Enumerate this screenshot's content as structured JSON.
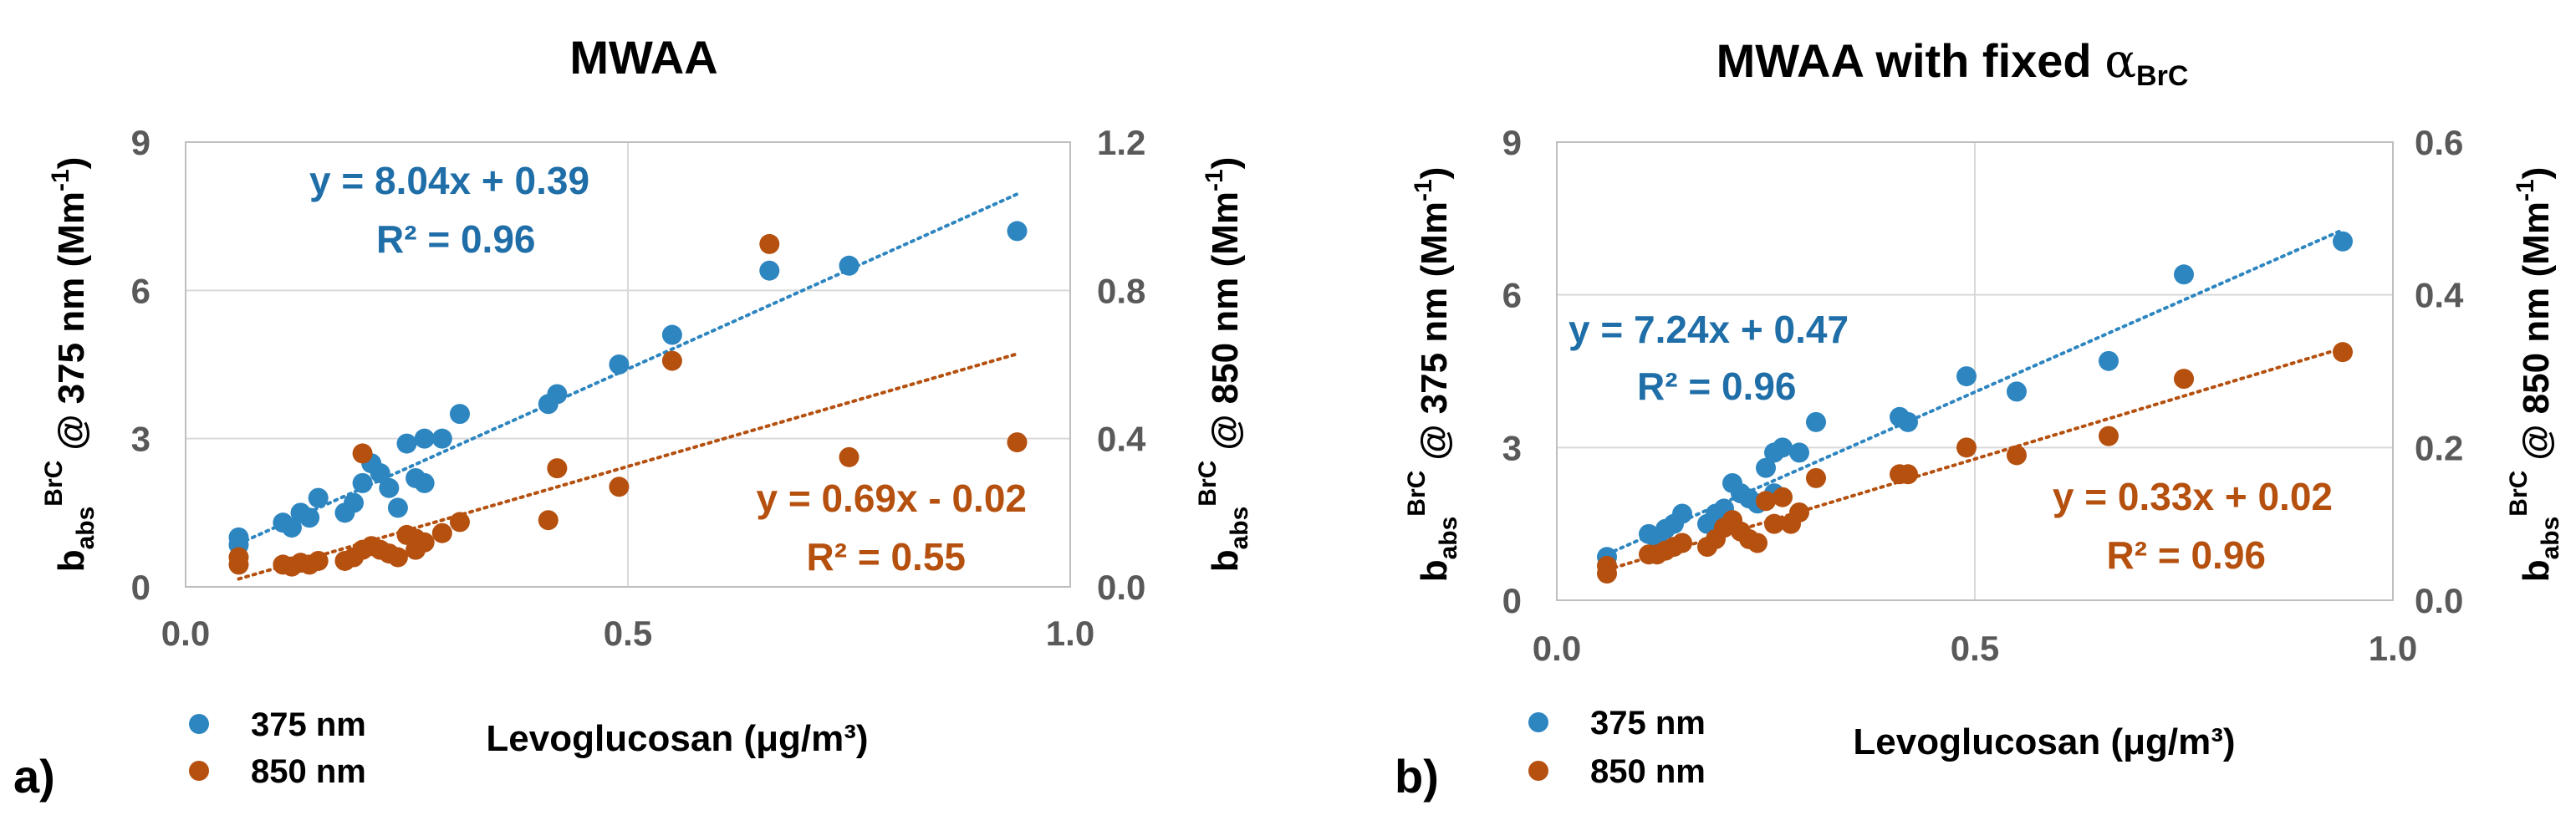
{
  "chart_data": [
    {
      "type": "scatter",
      "panel_label": "a)",
      "title": "MWAA",
      "title_suffix": "",
      "xlabel": "Levoglucosan (μg/m³)",
      "ylabel_left": "b_abs^BrC @ 375 nm (Mm⁻¹)",
      "ylabel_right": "b_abs^BrC @ 850 nm (Mm⁻¹)",
      "ylabel_parts": {
        "b": "b",
        "abs": "abs",
        "brc": "BrC",
        "left_rest": " @ 375 nm (Mm",
        "right_rest": " @ 850 nm (Mm",
        "exp": "-1",
        "close": ")"
      },
      "xlim": [
        0,
        1
      ],
      "ylim_left": [
        0,
        9
      ],
      "ylim_right": [
        0,
        1.2
      ],
      "xticks": [
        "0.0",
        "0.5",
        "1.0"
      ],
      "xtick_values": [
        0,
        0.5,
        1
      ],
      "yticks_left": [
        "0",
        "3",
        "6",
        "9"
      ],
      "ytick_values_left": [
        0,
        3,
        6,
        9
      ],
      "yticks_right": [
        "0.0",
        "0.4",
        "0.8",
        "1.2"
      ],
      "ytick_values_right": [
        0,
        0.4,
        0.8,
        1.2
      ],
      "grid": true,
      "colors": {
        "s375": "#2E86C1",
        "s850": "#B5500F",
        "grid": "#D9D9D9",
        "axis": "#BFBFBF"
      },
      "series": [
        {
          "name": "375 nm",
          "axis": "left",
          "color": "#2E86C1",
          "points": [
            [
              0.06,
              0.85
            ],
            [
              0.06,
              1.0
            ],
            [
              0.11,
              1.3
            ],
            [
              0.12,
              1.2
            ],
            [
              0.13,
              1.5
            ],
            [
              0.14,
              1.4
            ],
            [
              0.15,
              1.8
            ],
            [
              0.18,
              1.5
            ],
            [
              0.19,
              1.7
            ],
            [
              0.2,
              2.1
            ],
            [
              0.21,
              2.5
            ],
            [
              0.22,
              2.3
            ],
            [
              0.23,
              2.0
            ],
            [
              0.24,
              1.6
            ],
            [
              0.25,
              2.9
            ],
            [
              0.26,
              2.2
            ],
            [
              0.27,
              3.0
            ],
            [
              0.27,
              2.1
            ],
            [
              0.29,
              3.0
            ],
            [
              0.31,
              3.5
            ],
            [
              0.41,
              3.7
            ],
            [
              0.42,
              3.9
            ],
            [
              0.49,
              4.5
            ],
            [
              0.55,
              5.1
            ],
            [
              0.66,
              6.4
            ],
            [
              0.75,
              6.5
            ],
            [
              0.94,
              7.2
            ]
          ],
          "trend": {
            "slope": 8.04,
            "intercept": 0.39,
            "x": [
              0.06,
              0.94
            ],
            "equation": "y = 8.04x + 0.39",
            "r2": "R² = 0.96"
          }
        },
        {
          "name": "850 nm",
          "axis": "right",
          "color": "#B5500F",
          "points": [
            [
              0.06,
              0.06
            ],
            [
              0.06,
              0.08
            ],
            [
              0.11,
              0.06
            ],
            [
              0.12,
              0.055
            ],
            [
              0.13,
              0.065
            ],
            [
              0.14,
              0.06
            ],
            [
              0.15,
              0.07
            ],
            [
              0.18,
              0.07
            ],
            [
              0.19,
              0.08
            ],
            [
              0.2,
              0.36
            ],
            [
              0.2,
              0.1
            ],
            [
              0.21,
              0.11
            ],
            [
              0.22,
              0.1
            ],
            [
              0.23,
              0.09
            ],
            [
              0.24,
              0.08
            ],
            [
              0.25,
              0.14
            ],
            [
              0.26,
              0.13
            ],
            [
              0.26,
              0.1
            ],
            [
              0.27,
              0.12
            ],
            [
              0.29,
              0.145
            ],
            [
              0.31,
              0.175
            ],
            [
              0.41,
              0.18
            ],
            [
              0.42,
              0.32
            ],
            [
              0.49,
              0.27
            ],
            [
              0.55,
              0.61
            ],
            [
              0.66,
              0.925
            ],
            [
              0.75,
              0.35
            ],
            [
              0.94,
              0.39
            ]
          ],
          "trend": {
            "slope": 0.69,
            "intercept": -0.02,
            "x": [
              0.06,
              0.94
            ],
            "equation": "y = 0.69x - 0.02",
            "r2": "R² = 0.55"
          }
        }
      ],
      "legend": [
        "375 nm",
        "850 nm"
      ]
    },
    {
      "type": "scatter",
      "panel_label": "b)",
      "title": "MWAA with fixed ",
      "title_suffix_symbol": "α",
      "title_suffix_sub": "BrC",
      "xlabel": "Levoglucosan (μg/m³)",
      "ylabel_left": "b_abs^BrC @ 375 nm (Mm⁻¹)",
      "ylabel_right": "b_abs^BrC @ 850 nm (Mm⁻¹)",
      "ylabel_parts": {
        "b": "b",
        "abs": "abs",
        "brc": "BrC",
        "left_rest": " @ 375 nm (Mm",
        "right_rest": " @ 850 nm (Mm",
        "exp": "-1",
        "close": ")"
      },
      "xlim": [
        0,
        1
      ],
      "ylim_left": [
        0,
        9
      ],
      "ylim_right": [
        0,
        0.6
      ],
      "xticks": [
        "0.0",
        "0.5",
        "1.0"
      ],
      "xtick_values": [
        0,
        0.5,
        1
      ],
      "yticks_left": [
        "0",
        "3",
        "6",
        "9"
      ],
      "ytick_values_left": [
        0,
        3,
        6,
        9
      ],
      "yticks_right": [
        "0.0",
        "0.2",
        "0.4",
        "0.6"
      ],
      "ytick_values_right": [
        0,
        0.2,
        0.4,
        0.6
      ],
      "grid": true,
      "colors": {
        "s375": "#2E86C1",
        "s850": "#B5500F",
        "grid": "#D9D9D9",
        "axis": "#BFBFBF"
      },
      "series": [
        {
          "name": "375 nm",
          "axis": "left",
          "color": "#2E86C1",
          "points": [
            [
              0.06,
              0.85
            ],
            [
              0.11,
              1.3
            ],
            [
              0.12,
              1.2
            ],
            [
              0.13,
              1.4
            ],
            [
              0.14,
              1.5
            ],
            [
              0.15,
              1.7
            ],
            [
              0.18,
              1.5
            ],
            [
              0.19,
              1.7
            ],
            [
              0.2,
              1.8
            ],
            [
              0.21,
              2.3
            ],
            [
              0.22,
              2.1
            ],
            [
              0.23,
              2.0
            ],
            [
              0.24,
              1.9
            ],
            [
              0.25,
              2.6
            ],
            [
              0.26,
              2.9
            ],
            [
              0.26,
              2.1
            ],
            [
              0.27,
              3.0
            ],
            [
              0.29,
              2.9
            ],
            [
              0.31,
              3.5
            ],
            [
              0.41,
              3.6
            ],
            [
              0.42,
              3.5
            ],
            [
              0.49,
              4.4
            ],
            [
              0.55,
              4.1
            ],
            [
              0.66,
              4.7
            ],
            [
              0.75,
              6.4
            ],
            [
              0.94,
              7.05
            ]
          ],
          "trend": {
            "slope": 7.24,
            "intercept": 0.47,
            "x": [
              0.06,
              0.94
            ],
            "equation": "y = 7.24x + 0.47",
            "r2": "R² = 0.96"
          }
        },
        {
          "name": "850 nm",
          "axis": "right",
          "color": "#B5500F",
          "points": [
            [
              0.06,
              0.035
            ],
            [
              0.06,
              0.045
            ],
            [
              0.11,
              0.06
            ],
            [
              0.12,
              0.06
            ],
            [
              0.13,
              0.065
            ],
            [
              0.14,
              0.07
            ],
            [
              0.15,
              0.075
            ],
            [
              0.18,
              0.07
            ],
            [
              0.19,
              0.08
            ],
            [
              0.2,
              0.095
            ],
            [
              0.21,
              0.105
            ],
            [
              0.22,
              0.09
            ],
            [
              0.23,
              0.08
            ],
            [
              0.24,
              0.075
            ],
            [
              0.25,
              0.13
            ],
            [
              0.26,
              0.1
            ],
            [
              0.27,
              0.135
            ],
            [
              0.28,
              0.1
            ],
            [
              0.29,
              0.115
            ],
            [
              0.31,
              0.16
            ],
            [
              0.41,
              0.165
            ],
            [
              0.42,
              0.165
            ],
            [
              0.49,
              0.2
            ],
            [
              0.55,
              0.19
            ],
            [
              0.66,
              0.215
            ],
            [
              0.75,
              0.29
            ],
            [
              0.94,
              0.325
            ]
          ],
          "trend": {
            "slope": 0.33,
            "intercept": 0.02,
            "x": [
              0.06,
              0.94
            ],
            "equation": "y = 0.33x + 0.02",
            "r2": "R² = 0.96"
          }
        }
      ],
      "legend": [
        "375 nm",
        "850 nm"
      ]
    }
  ]
}
